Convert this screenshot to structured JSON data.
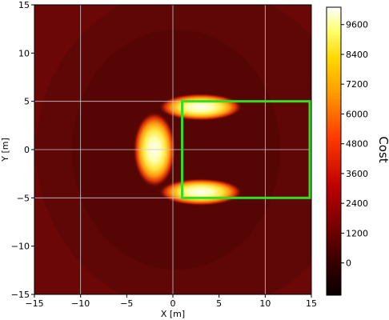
{
  "chart_data": {
    "type": "heatmap",
    "title": "",
    "xlabel": "X [m]",
    "ylabel": "Y [m]",
    "xlim": [
      -15,
      15
    ],
    "ylim": [
      -15,
      15
    ],
    "xticks": [
      -15,
      -10,
      -5,
      0,
      5,
      10,
      15
    ],
    "yticks": [
      -15,
      -10,
      -5,
      0,
      5,
      10,
      15
    ],
    "grid_lines": {
      "x": [
        -10,
        0,
        10
      ],
      "y": [
        -5,
        0,
        5
      ],
      "color": "#c8c8c8"
    },
    "colorbar": {
      "label": "Cost",
      "range": [
        -1300,
        10300
      ],
      "ticks": [
        0,
        1200,
        2400,
        3600,
        4800,
        6000,
        7200,
        8400,
        9600
      ],
      "colormap": "hot"
    },
    "background_cost": -300,
    "high_cost_regions": [
      {
        "shape": "ellipse",
        "center": [
          -2,
          0
        ],
        "radii": [
          2.3,
          3.9
        ],
        "peak_cost": 10000
      },
      {
        "shape": "ellipse",
        "center": [
          3,
          4.4
        ],
        "radii": [
          4.5,
          1.4
        ],
        "peak_cost": 10000
      },
      {
        "shape": "ellipse",
        "center": [
          3,
          -4.4
        ],
        "radii": [
          4.5,
          1.4
        ],
        "peak_cost": 10000
      }
    ],
    "region_box": {
      "x": [
        1,
        15
      ],
      "y": [
        -5,
        5
      ],
      "color": "#33dd22"
    }
  }
}
